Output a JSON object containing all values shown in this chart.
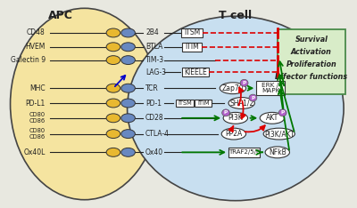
{
  "title_apc": "APC",
  "title_tcell": "T cell",
  "bg_color": "#e8e8e0",
  "apc_color": "#f5e4a0",
  "tcell_color": "#c8dff0",
  "overlap_color": "#d0d8c8",
  "box_fill": "#d8ecc8",
  "box_edge": "#4a8a4a",
  "ellipse_yellow": "#e8b830",
  "ellipse_blue": "#6888c0",
  "ellipse_purple": "#b060c8",
  "white": "#ffffff",
  "dark": "#222222",
  "red": "#dd0000",
  "green": "#007700",
  "blue_arrow": "#0000cc",
  "apc_labels": [
    "CD48",
    "HVEM",
    "Galectin 9",
    "",
    "MHC",
    "",
    "PD-L1",
    "",
    "CD80\nCD86",
    "",
    "CD80\nCD86",
    "",
    "Ox40L"
  ],
  "tcell_labels": [
    "2B4",
    "BTLA",
    "TIM-3",
    "LAG-3",
    "TCR",
    "PD-1",
    "CD28",
    "CTLA-4",
    "Ox40"
  ],
  "survival_text": [
    "Survival",
    "Activation",
    "Proliferation",
    "Effector functions"
  ]
}
